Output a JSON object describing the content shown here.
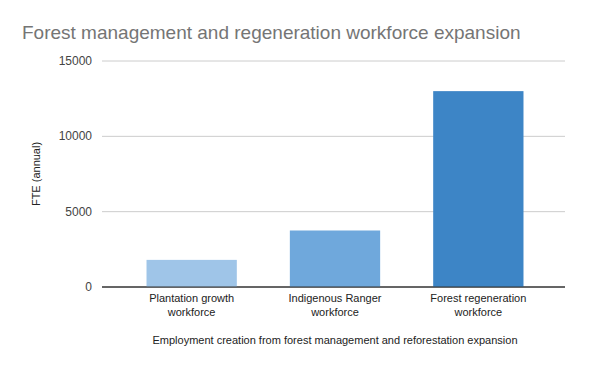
{
  "chart_data": {
    "type": "bar",
    "title": "Forest management and regeneration workforce expansion",
    "x_label": "Employment creation from forest management and reforestation expansion",
    "y_label": "FTE (annual)",
    "categories": [
      "Plantation growth workforce",
      "Indigenous Ranger workforce",
      "Forest regeneration workforce"
    ],
    "values": [
      1800,
      3750,
      13000
    ],
    "colors": [
      "#9fc5e8",
      "#6fa8dc",
      "#3d85c6"
    ],
    "ylim": [
      0,
      15000
    ],
    "yticks": [
      0,
      5000,
      10000,
      15000
    ],
    "grid": true
  }
}
